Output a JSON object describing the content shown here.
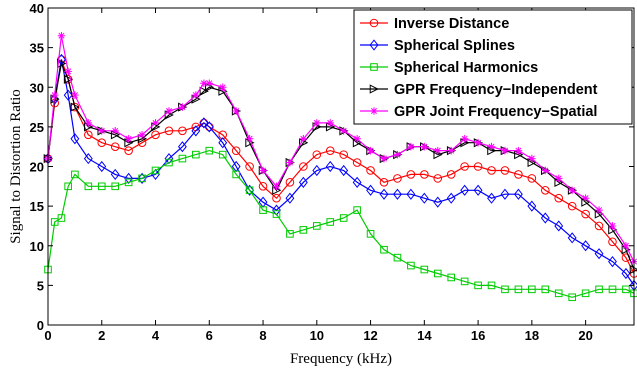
{
  "chart_data": {
    "type": "line",
    "title": "",
    "xlabel": "Frequency (kHz)",
    "ylabel": "Signal to Distortion Ratio",
    "xlim": [
      0,
      21.8
    ],
    "ylim": [
      0,
      40
    ],
    "xticks": [
      0,
      2,
      4,
      6,
      8,
      10,
      12,
      14,
      16,
      18,
      20
    ],
    "yticks": [
      0,
      5,
      10,
      15,
      20,
      25,
      30,
      35,
      40
    ],
    "grid": false,
    "legend_position": "top-right",
    "series": [
      {
        "name": "Inverse Distance",
        "color": "#ff0000",
        "marker": "circle",
        "points": [
          [
            0,
            21
          ],
          [
            0.25,
            28
          ],
          [
            0.5,
            33.5
          ],
          [
            0.75,
            31
          ],
          [
            1,
            27.5
          ],
          [
            1.5,
            24
          ],
          [
            2,
            23
          ],
          [
            2.5,
            22.5
          ],
          [
            3,
            22
          ],
          [
            3.5,
            23
          ],
          [
            4,
            24
          ],
          [
            4.5,
            24.5
          ],
          [
            5,
            24.5
          ],
          [
            5.5,
            25
          ],
          [
            5.8,
            25.5
          ],
          [
            6,
            25
          ],
          [
            6.5,
            24
          ],
          [
            7,
            22
          ],
          [
            7.5,
            20
          ],
          [
            8,
            17.5
          ],
          [
            8.5,
            16
          ],
          [
            9,
            18
          ],
          [
            9.5,
            20
          ],
          [
            10,
            21.5
          ],
          [
            10.5,
            22
          ],
          [
            11,
            21.5
          ],
          [
            11.5,
            20.5
          ],
          [
            12,
            19.5
          ],
          [
            12.5,
            18
          ],
          [
            13,
            18.5
          ],
          [
            13.5,
            19
          ],
          [
            14,
            19
          ],
          [
            14.5,
            18.5
          ],
          [
            15,
            19
          ],
          [
            15.5,
            20
          ],
          [
            16,
            20
          ],
          [
            16.5,
            19.5
          ],
          [
            17,
            19.5
          ],
          [
            17.5,
            19
          ],
          [
            18,
            18.5
          ],
          [
            18.5,
            17
          ],
          [
            19,
            16
          ],
          [
            19.5,
            15
          ],
          [
            20,
            14
          ],
          [
            20.5,
            12.5
          ],
          [
            21,
            10.5
          ],
          [
            21.5,
            8.5
          ],
          [
            21.8,
            6.5
          ]
        ]
      },
      {
        "name": "Spherical Splines",
        "color": "#0000ff",
        "marker": "diamond",
        "points": [
          [
            0,
            21
          ],
          [
            0.25,
            28.5
          ],
          [
            0.5,
            33.5
          ],
          [
            0.75,
            29
          ],
          [
            1,
            23.5
          ],
          [
            1.5,
            21
          ],
          [
            2,
            20
          ],
          [
            2.5,
            19
          ],
          [
            3,
            18.5
          ],
          [
            3.5,
            18.5
          ],
          [
            4,
            19
          ],
          [
            4.5,
            21
          ],
          [
            5,
            22.5
          ],
          [
            5.5,
            24.5
          ],
          [
            5.8,
            25.5
          ],
          [
            6,
            25
          ],
          [
            6.5,
            23
          ],
          [
            7,
            20
          ],
          [
            7.5,
            17
          ],
          [
            8,
            15.5
          ],
          [
            8.5,
            14.5
          ],
          [
            9,
            16
          ],
          [
            9.5,
            18
          ],
          [
            10,
            19.5
          ],
          [
            10.5,
            20
          ],
          [
            11,
            19.5
          ],
          [
            11.5,
            18
          ],
          [
            12,
            17
          ],
          [
            12.5,
            16.5
          ],
          [
            13,
            16.5
          ],
          [
            13.5,
            16.5
          ],
          [
            14,
            16
          ],
          [
            14.5,
            15.5
          ],
          [
            15,
            16
          ],
          [
            15.5,
            17
          ],
          [
            16,
            17
          ],
          [
            16.5,
            16
          ],
          [
            17,
            16.5
          ],
          [
            17.5,
            16.5
          ],
          [
            18,
            15
          ],
          [
            18.5,
            13.5
          ],
          [
            19,
            12.5
          ],
          [
            19.5,
            11
          ],
          [
            20,
            10
          ],
          [
            20.5,
            9
          ],
          [
            21,
            8
          ],
          [
            21.5,
            6.5
          ],
          [
            21.8,
            5
          ]
        ]
      },
      {
        "name": "Spherical Harmonics",
        "color": "#00cc00",
        "marker": "square",
        "points": [
          [
            0,
            7
          ],
          [
            0.25,
            13
          ],
          [
            0.5,
            13.5
          ],
          [
            0.75,
            17.5
          ],
          [
            1,
            19
          ],
          [
            1.5,
            17.5
          ],
          [
            2,
            17.5
          ],
          [
            2.5,
            17.5
          ],
          [
            3,
            18
          ],
          [
            3.5,
            18.5
          ],
          [
            4,
            19.5
          ],
          [
            4.5,
            20.5
          ],
          [
            5,
            21
          ],
          [
            5.5,
            21.5
          ],
          [
            6,
            22
          ],
          [
            6.5,
            21.5
          ],
          [
            7,
            19
          ],
          [
            7.5,
            17
          ],
          [
            8,
            14.5
          ],
          [
            8.5,
            14
          ],
          [
            9,
            11.5
          ],
          [
            9.5,
            12
          ],
          [
            10,
            12.5
          ],
          [
            10.5,
            13
          ],
          [
            11,
            13.5
          ],
          [
            11.5,
            14.5
          ],
          [
            12,
            11.5
          ],
          [
            12.5,
            9.5
          ],
          [
            13,
            8.5
          ],
          [
            13.5,
            7.5
          ],
          [
            14,
            7
          ],
          [
            14.5,
            6.5
          ],
          [
            15,
            6
          ],
          [
            15.5,
            5.5
          ],
          [
            16,
            5
          ],
          [
            16.5,
            5
          ],
          [
            17,
            4.5
          ],
          [
            17.5,
            4.5
          ],
          [
            18,
            4.5
          ],
          [
            18.5,
            4.5
          ],
          [
            19,
            4
          ],
          [
            19.5,
            3.5
          ],
          [
            20,
            4
          ],
          [
            20.5,
            4.5
          ],
          [
            21,
            4.5
          ],
          [
            21.5,
            4.5
          ],
          [
            21.8,
            4
          ]
        ]
      },
      {
        "name": "GPR Frequency−Independent",
        "color": "#000000",
        "marker": "triangle-right",
        "points": [
          [
            0,
            21
          ],
          [
            0.25,
            28.5
          ],
          [
            0.5,
            33
          ],
          [
            0.75,
            31
          ],
          [
            1,
            27.5
          ],
          [
            1.5,
            25
          ],
          [
            2,
            24.5
          ],
          [
            2.5,
            24
          ],
          [
            3,
            23
          ],
          [
            3.5,
            23.5
          ],
          [
            4,
            25
          ],
          [
            4.5,
            26.5
          ],
          [
            5,
            27.5
          ],
          [
            5.5,
            28.5
          ],
          [
            5.8,
            29.5
          ],
          [
            6,
            30
          ],
          [
            6.5,
            29.5
          ],
          [
            7,
            27
          ],
          [
            7.5,
            23
          ],
          [
            8,
            19.5
          ],
          [
            8.5,
            17
          ],
          [
            9,
            20.5
          ],
          [
            9.5,
            23
          ],
          [
            10,
            25
          ],
          [
            10.5,
            25
          ],
          [
            11,
            24.5
          ],
          [
            11.5,
            23
          ],
          [
            12,
            22
          ],
          [
            12.5,
            21
          ],
          [
            13,
            21.5
          ],
          [
            13.5,
            22.5
          ],
          [
            14,
            22.5
          ],
          [
            14.5,
            21.5
          ],
          [
            15,
            22
          ],
          [
            15.5,
            23
          ],
          [
            16,
            23
          ],
          [
            16.5,
            22
          ],
          [
            17,
            22
          ],
          [
            17.5,
            21.5
          ],
          [
            18,
            20.5
          ],
          [
            18.5,
            19.5
          ],
          [
            19,
            18
          ],
          [
            19.5,
            17
          ],
          [
            20,
            15.5
          ],
          [
            20.5,
            14
          ],
          [
            21,
            12
          ],
          [
            21.5,
            9.5
          ],
          [
            21.8,
            7
          ]
        ]
      },
      {
        "name": "GPR Joint Frequency−Spatial",
        "color": "#ff00ff",
        "marker": "star",
        "points": [
          [
            0,
            21
          ],
          [
            0.25,
            29
          ],
          [
            0.5,
            36.5
          ],
          [
            0.75,
            32
          ],
          [
            1,
            29
          ],
          [
            1.5,
            25.5
          ],
          [
            2,
            24.5
          ],
          [
            2.5,
            24.5
          ],
          [
            3,
            23.5
          ],
          [
            3.5,
            24
          ],
          [
            4,
            25.5
          ],
          [
            4.5,
            27
          ],
          [
            5,
            27.5
          ],
          [
            5.5,
            29
          ],
          [
            5.8,
            30.5
          ],
          [
            6,
            30.5
          ],
          [
            6.5,
            30
          ],
          [
            7,
            27
          ],
          [
            7.5,
            23.5
          ],
          [
            8,
            19.5
          ],
          [
            8.5,
            17.5
          ],
          [
            9,
            20.5
          ],
          [
            9.5,
            23.5
          ],
          [
            10,
            25.5
          ],
          [
            10.5,
            25.5
          ],
          [
            11,
            24.5
          ],
          [
            11.5,
            23.5
          ],
          [
            12,
            22
          ],
          [
            12.5,
            21
          ],
          [
            13,
            21.5
          ],
          [
            13.5,
            22.5
          ],
          [
            14,
            22.5
          ],
          [
            14.5,
            22
          ],
          [
            15,
            22
          ],
          [
            15.5,
            23.5
          ],
          [
            16,
            23
          ],
          [
            16.5,
            22.5
          ],
          [
            17,
            22
          ],
          [
            17.5,
            22
          ],
          [
            18,
            21
          ],
          [
            18.5,
            19.5
          ],
          [
            19,
            18.5
          ],
          [
            19.5,
            17
          ],
          [
            20,
            16
          ],
          [
            20.5,
            14.5
          ],
          [
            21,
            12.5
          ],
          [
            21.5,
            10
          ],
          [
            21.8,
            8
          ]
        ]
      }
    ]
  }
}
